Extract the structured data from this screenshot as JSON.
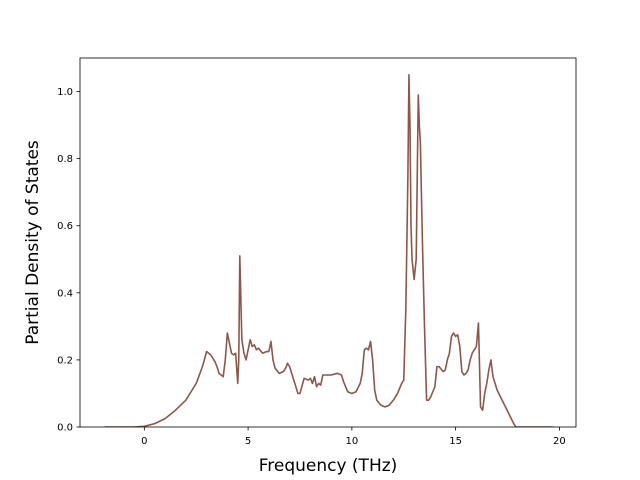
{
  "chart_data": {
    "type": "line",
    "title": "",
    "xlabel": "Frequency (THz)",
    "ylabel": "Partial Density of States",
    "xlim": [
      -3.1,
      20.8
    ],
    "ylim": [
      0.0,
      1.1
    ],
    "xticks": [
      0,
      5,
      10,
      15,
      20
    ],
    "yticks": [
      0.0,
      0.2,
      0.4,
      0.6,
      0.8,
      1.0
    ],
    "xtick_labels": [
      "0",
      "5",
      "10",
      "15",
      "20"
    ],
    "ytick_labels": [
      "0.0",
      "0.2",
      "0.4",
      "0.6",
      "0.8",
      "1.0"
    ],
    "grid": false,
    "series": [
      {
        "color": "#8c564b",
        "x": [
          -1.9,
          -0.5,
          0.0,
          0.5,
          1.0,
          1.5,
          2.0,
          2.5,
          2.8,
          3.0,
          3.2,
          3.4,
          3.5,
          3.6,
          3.7,
          3.8,
          3.9,
          4.0,
          4.1,
          4.2,
          4.3,
          4.4,
          4.5,
          4.55,
          4.6,
          4.7,
          4.8,
          4.9,
          5.0,
          5.1,
          5.2,
          5.3,
          5.4,
          5.5,
          5.7,
          5.9,
          6.0,
          6.1,
          6.2,
          6.3,
          6.5,
          6.7,
          6.8,
          6.9,
          7.0,
          7.2,
          7.4,
          7.5,
          7.7,
          7.9,
          8.0,
          8.1,
          8.2,
          8.3,
          8.4,
          8.5,
          8.6,
          9.0,
          9.3,
          9.5,
          9.6,
          9.8,
          10.0,
          10.2,
          10.4,
          10.5,
          10.6,
          10.7,
          10.8,
          10.9,
          11.0,
          11.1,
          11.2,
          11.4,
          11.6,
          11.8,
          12.0,
          12.2,
          12.4,
          12.5,
          12.6,
          12.7,
          12.75,
          12.8,
          12.85,
          12.9,
          13.0,
          13.1,
          13.2,
          13.25,
          13.3,
          13.4,
          13.5,
          13.6,
          13.7,
          13.8,
          14.0,
          14.1,
          14.2,
          14.4,
          14.5,
          14.6,
          14.7,
          14.8,
          14.9,
          15.0,
          15.1,
          15.2,
          15.3,
          15.4,
          15.5,
          15.6,
          15.7,
          15.8,
          15.9,
          16.0,
          16.1,
          16.2,
          16.3,
          16.4,
          16.5,
          16.6,
          16.7,
          16.8,
          16.9,
          17.0,
          17.2,
          17.4,
          17.6,
          17.8,
          17.9,
          18.0,
          19.7
        ],
        "y": [
          0.0,
          0.0,
          0.002,
          0.01,
          0.025,
          0.05,
          0.08,
          0.13,
          0.18,
          0.225,
          0.215,
          0.195,
          0.18,
          0.16,
          0.155,
          0.15,
          0.2,
          0.28,
          0.25,
          0.22,
          0.215,
          0.22,
          0.13,
          0.2,
          0.51,
          0.26,
          0.22,
          0.2,
          0.23,
          0.26,
          0.24,
          0.245,
          0.23,
          0.235,
          0.22,
          0.225,
          0.225,
          0.255,
          0.2,
          0.175,
          0.16,
          0.165,
          0.175,
          0.19,
          0.18,
          0.14,
          0.1,
          0.1,
          0.145,
          0.14,
          0.145,
          0.13,
          0.15,
          0.12,
          0.13,
          0.125,
          0.155,
          0.155,
          0.16,
          0.155,
          0.135,
          0.105,
          0.1,
          0.105,
          0.13,
          0.16,
          0.23,
          0.235,
          0.23,
          0.255,
          0.2,
          0.11,
          0.08,
          0.065,
          0.06,
          0.065,
          0.08,
          0.1,
          0.13,
          0.14,
          0.35,
          0.75,
          1.05,
          0.9,
          0.6,
          0.5,
          0.44,
          0.5,
          0.99,
          0.9,
          0.85,
          0.55,
          0.3,
          0.08,
          0.08,
          0.09,
          0.12,
          0.18,
          0.18,
          0.165,
          0.17,
          0.2,
          0.22,
          0.27,
          0.28,
          0.27,
          0.275,
          0.24,
          0.165,
          0.155,
          0.16,
          0.17,
          0.2,
          0.22,
          0.23,
          0.24,
          0.31,
          0.06,
          0.05,
          0.1,
          0.13,
          0.17,
          0.2,
          0.15,
          0.13,
          0.11,
          0.085,
          0.06,
          0.035,
          0.01,
          0.0,
          0.0,
          0.0
        ]
      }
    ]
  }
}
